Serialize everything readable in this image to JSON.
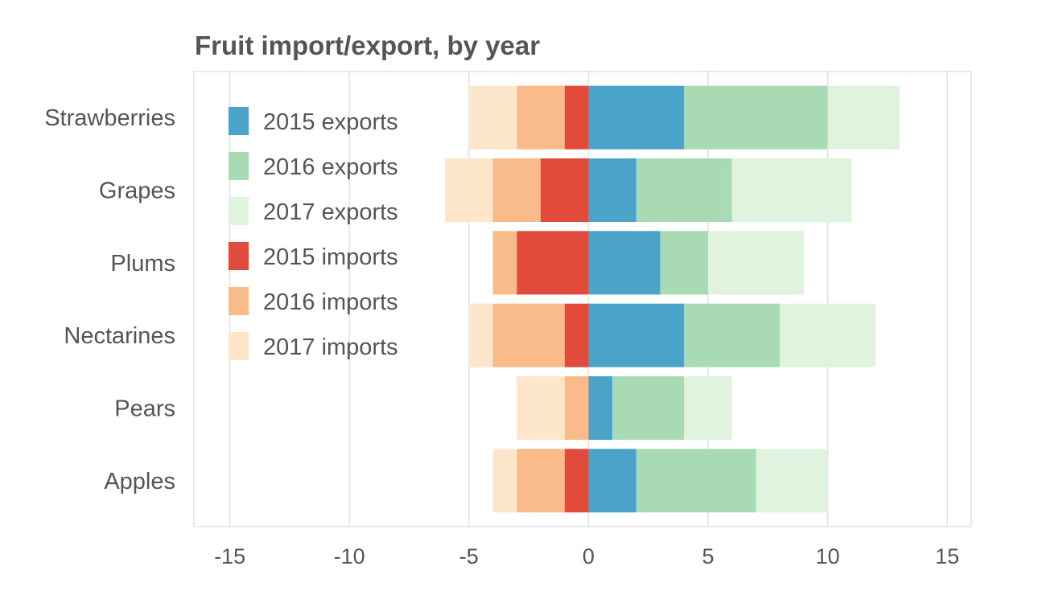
{
  "chart_data": {
    "type": "bar",
    "orientation": "horizontal",
    "stacked": "diverging",
    "title": "Fruit import/export, by year",
    "xlabel": "",
    "ylabel": "",
    "categories": [
      "Strawberries",
      "Grapes",
      "Plums",
      "Nectarines",
      "Pears",
      "Apples"
    ],
    "xlim": [
      -16.5,
      16
    ],
    "xticks": [
      -15,
      -10,
      -5,
      0,
      5,
      10,
      15
    ],
    "grid": true,
    "legend_position": "top-left",
    "series": [
      {
        "name": "2015 exports",
        "color": "#4ba3c9",
        "values": [
          4,
          2,
          3,
          4,
          1,
          2
        ]
      },
      {
        "name": "2016 exports",
        "color": "#a8dbb3",
        "values": [
          6,
          4,
          2,
          4,
          3,
          5
        ]
      },
      {
        "name": "2017 exports",
        "color": "#e0f3de",
        "values": [
          3,
          5,
          4,
          4,
          2,
          3
        ]
      },
      {
        "name": "2015 imports",
        "color": "#e24b3b",
        "values": [
          -1,
          -2,
          -3,
          -1,
          0,
          -1
        ]
      },
      {
        "name": "2016 imports",
        "color": "#f9bb8a",
        "values": [
          -2,
          -2,
          -1,
          -3,
          -1,
          -2
        ]
      },
      {
        "name": "2017 imports",
        "color": "#fde6c9",
        "values": [
          -2,
          -2,
          0,
          -1,
          -2,
          -1
        ]
      }
    ]
  }
}
